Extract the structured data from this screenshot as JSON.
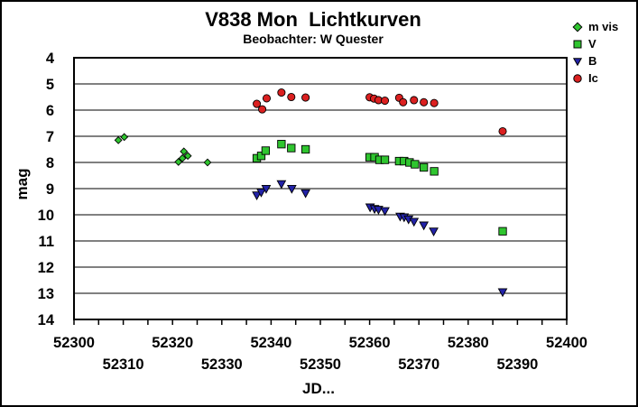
{
  "window": {
    "background": "#ffffff",
    "frame_border_color": "#000000"
  },
  "chart_data": {
    "type": "scatter",
    "title": "V838 Mon  Lichtkurven",
    "subtitle": "Beobachter: W Quester",
    "xlabel": "JD...",
    "ylabel": "mag",
    "x_range": [
      52300,
      52400
    ],
    "y_range": [
      4,
      14
    ],
    "y_axis_inverted": true,
    "grid": "horizontal",
    "x_tick_step_minor": 5,
    "x_tick_labels_row1": [
      52300,
      52320,
      52340,
      52360,
      52380,
      52400
    ],
    "x_tick_labels_row2": [
      52310,
      52330,
      52350,
      52370,
      52390
    ],
    "y_ticks": [
      4,
      5,
      6,
      7,
      8,
      9,
      10,
      11,
      12,
      13,
      14
    ],
    "legend_position": "top-right",
    "series": [
      {
        "name": "m vis",
        "marker": "diamond",
        "color": "#2FC52F",
        "points": [
          [
            52309.0,
            7.15
          ],
          [
            52310.2,
            7.03
          ],
          [
            52321.2,
            7.98
          ],
          [
            52322.0,
            7.84
          ],
          [
            52322.3,
            7.58
          ],
          [
            52323.1,
            7.75
          ],
          [
            52327.1,
            8.0
          ]
        ]
      },
      {
        "name": "V",
        "marker": "square",
        "color": "#2FC52F",
        "points": [
          [
            52337.1,
            7.84
          ],
          [
            52338.0,
            7.75
          ],
          [
            52338.9,
            7.55
          ],
          [
            52342.1,
            7.3
          ],
          [
            52344.1,
            7.45
          ],
          [
            52347.0,
            7.5
          ],
          [
            52360.0,
            7.8
          ],
          [
            52361.0,
            7.8
          ],
          [
            52362.0,
            7.9
          ],
          [
            52363.1,
            7.9
          ],
          [
            52366.0,
            7.95
          ],
          [
            52367.0,
            7.95
          ],
          [
            52368.1,
            8.0
          ],
          [
            52369.2,
            8.07
          ],
          [
            52371.0,
            8.19
          ],
          [
            52373.1,
            8.34
          ],
          [
            52387.0,
            10.63
          ]
        ]
      },
      {
        "name": "B",
        "marker": "triangle-down",
        "color": "#2323A8",
        "points": [
          [
            52337.1,
            9.25
          ],
          [
            52338.0,
            9.14
          ],
          [
            52339.0,
            9.0
          ],
          [
            52342.1,
            8.82
          ],
          [
            52344.2,
            9.0
          ],
          [
            52347.0,
            9.17
          ],
          [
            52360.1,
            9.71
          ],
          [
            52361.0,
            9.77
          ],
          [
            52361.8,
            9.8
          ],
          [
            52363.1,
            9.85
          ],
          [
            52366.2,
            10.06
          ],
          [
            52367.0,
            10.09
          ],
          [
            52367.9,
            10.17
          ],
          [
            52369.0,
            10.26
          ],
          [
            52371.0,
            10.4
          ],
          [
            52373.0,
            10.63
          ],
          [
            52387.0,
            12.95
          ]
        ]
      },
      {
        "name": "Ic",
        "marker": "circle",
        "color": "#DB2020",
        "points": [
          [
            52337.1,
            5.76
          ],
          [
            52338.2,
            5.97
          ],
          [
            52339.1,
            5.55
          ],
          [
            52342.1,
            5.33
          ],
          [
            52344.1,
            5.5
          ],
          [
            52347.0,
            5.52
          ],
          [
            52360.0,
            5.51
          ],
          [
            52360.9,
            5.56
          ],
          [
            52361.8,
            5.62
          ],
          [
            52363.1,
            5.64
          ],
          [
            52366.0,
            5.53
          ],
          [
            52366.8,
            5.7
          ],
          [
            52369.0,
            5.62
          ],
          [
            52371.0,
            5.7
          ],
          [
            52373.1,
            5.73
          ],
          [
            52387.0,
            6.81
          ]
        ]
      }
    ]
  }
}
